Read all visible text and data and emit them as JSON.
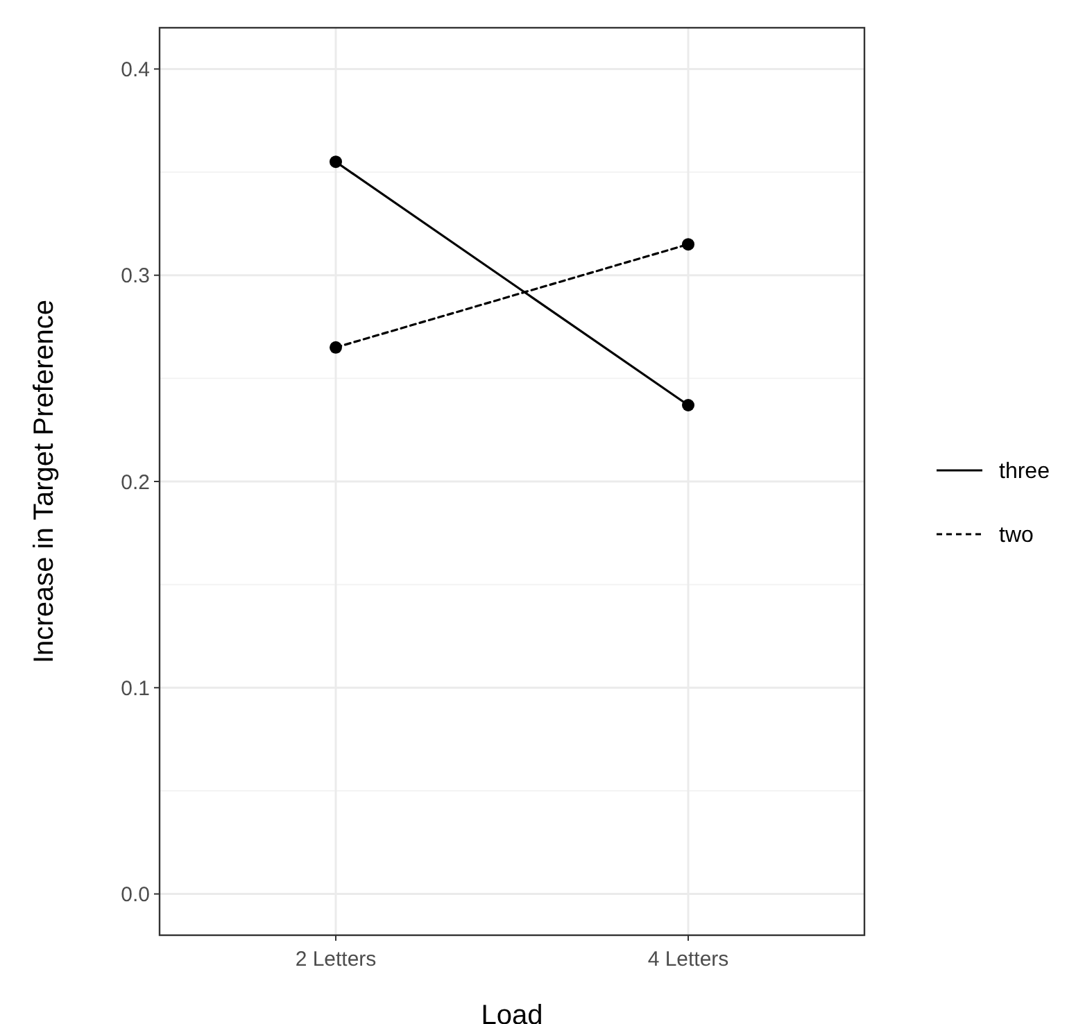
{
  "chart_data": {
    "type": "line",
    "xlabel": "Load",
    "ylabel": "Increase in Target Preference",
    "categories": [
      "2 Letters",
      "4 Letters"
    ],
    "series": [
      {
        "name": "three",
        "color": "#000000",
        "values": [
          0.355,
          0.237
        ],
        "line_style": "solid"
      },
      {
        "name": "two",
        "color": "#000000",
        "values": [
          0.265,
          0.315
        ],
        "line_style": "dashed"
      }
    ],
    "ylim": [
      -0.02,
      0.42
    ],
    "yticks": [
      {
        "value": 0,
        "label": "0.0"
      },
      0.1,
      0.2,
      0.3,
      0.4
    ],
    "grid": true,
    "legend": "right",
    "marker": "circle"
  }
}
